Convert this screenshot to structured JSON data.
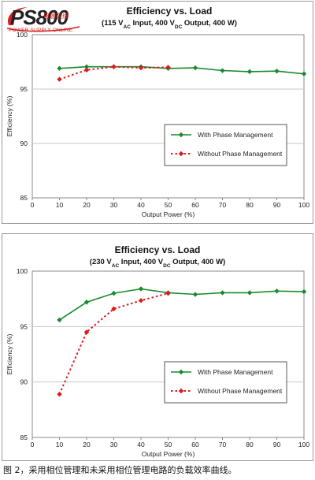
{
  "logo": {
    "main": "PS800",
    "sub": "电源在线",
    "tag": "POWER SUPPLY ONLINE"
  },
  "caption": "图 2，采用相位管理和未采用相位管理电路的负载效率曲线。",
  "colors": {
    "series": "#1a8a2e",
    "series_dashed": "#e01818",
    "grid": "#c8c8c8",
    "axis": "#888888"
  },
  "chart_data": [
    {
      "type": "line",
      "title": "Efficiency vs. Load",
      "subtitle_parts": [
        "(115 V",
        "AC",
        " Input, 400 V",
        "DC",
        " Output, 400 W)"
      ],
      "xlabel": "Output Power (%)",
      "ylabel": "Efficiency (%)",
      "xlim": [
        0,
        100
      ],
      "ylim": [
        85,
        100
      ],
      "xticks": [
        0,
        10,
        20,
        30,
        40,
        50,
        60,
        70,
        80,
        90,
        100
      ],
      "yticks": [
        85,
        90,
        95,
        100
      ],
      "grid": true,
      "legend_position": "right",
      "series": [
        {
          "name": "With Phase Management",
          "style": "solid-diamond",
          "x": [
            10,
            20,
            30,
            40,
            50,
            60,
            70,
            80,
            90,
            100
          ],
          "values": [
            96.9,
            97.05,
            97.05,
            97.05,
            96.9,
            96.95,
            96.7,
            96.6,
            96.65,
            96.4
          ]
        },
        {
          "name": "Without Phase Management",
          "style": "dashed-diamond",
          "x": [
            10,
            20,
            30,
            40,
            50
          ],
          "values": [
            95.9,
            96.75,
            97.05,
            96.95,
            97.0
          ]
        }
      ]
    },
    {
      "type": "line",
      "title": "Efficiency vs. Load",
      "subtitle_parts": [
        "(230 V",
        "AC",
        " Input, 400 V",
        "DC",
        " Output, 400 W)"
      ],
      "xlabel": "Output Power (%)",
      "ylabel": "Efficiency (%)",
      "xlim": [
        0,
        100
      ],
      "ylim": [
        85,
        100
      ],
      "xticks": [
        0,
        10,
        20,
        30,
        40,
        50,
        60,
        70,
        80,
        90,
        100
      ],
      "yticks": [
        85,
        90,
        95,
        100
      ],
      "grid": true,
      "legend_position": "right",
      "series": [
        {
          "name": "With Phase Management",
          "style": "solid-diamond",
          "x": [
            10,
            20,
            30,
            40,
            50,
            60,
            70,
            80,
            90,
            100
          ],
          "values": [
            95.6,
            97.2,
            98.0,
            98.4,
            98.05,
            97.9,
            98.05,
            98.05,
            98.2,
            98.15
          ]
        },
        {
          "name": "Without Phase Management",
          "style": "dashed-diamond",
          "x": [
            10,
            20,
            30,
            40,
            50
          ],
          "values": [
            88.9,
            94.5,
            96.6,
            97.35,
            98.0
          ]
        }
      ]
    }
  ]
}
